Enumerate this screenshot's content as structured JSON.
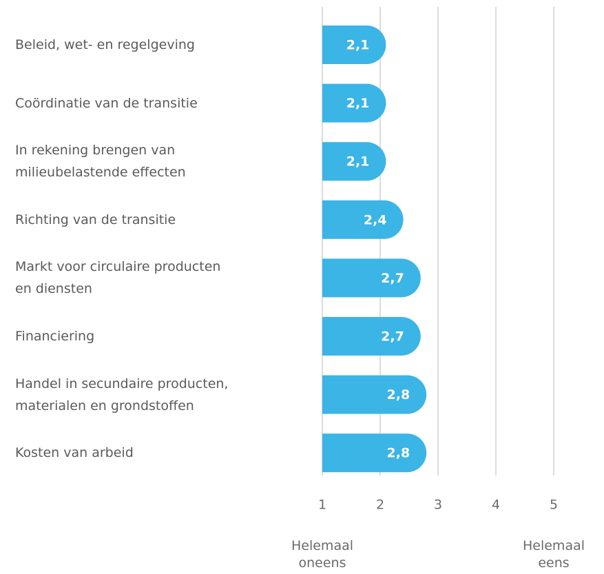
{
  "chart_data": {
    "type": "barh",
    "categories": [
      "Beleid, wet- en regelgeving",
      "Coördinatie van de transitie",
      "In rekening brengen van\nmilieubelastende effecten",
      "Richting van de transitie",
      "Markt voor circulaire producten\nen diensten",
      "Financiering",
      "Handel in secundaire producten,\nmaterialen en grondstoffen",
      "Kosten van arbeid"
    ],
    "values": [
      2.1,
      2.1,
      2.1,
      2.4,
      2.7,
      2.7,
      2.8,
      2.8
    ],
    "value_labels": [
      "2,1",
      "2,1",
      "2,1",
      "2,4",
      "2,7",
      "2,7",
      "2,8",
      "2,8"
    ],
    "color": "#3bb4e6",
    "xlim": [
      1,
      5
    ],
    "xticks": [
      1,
      2,
      3,
      4,
      5
    ],
    "grid": true,
    "x_min_label": "Helemaal\noneens",
    "x_max_label": "Helemaal\neens"
  }
}
